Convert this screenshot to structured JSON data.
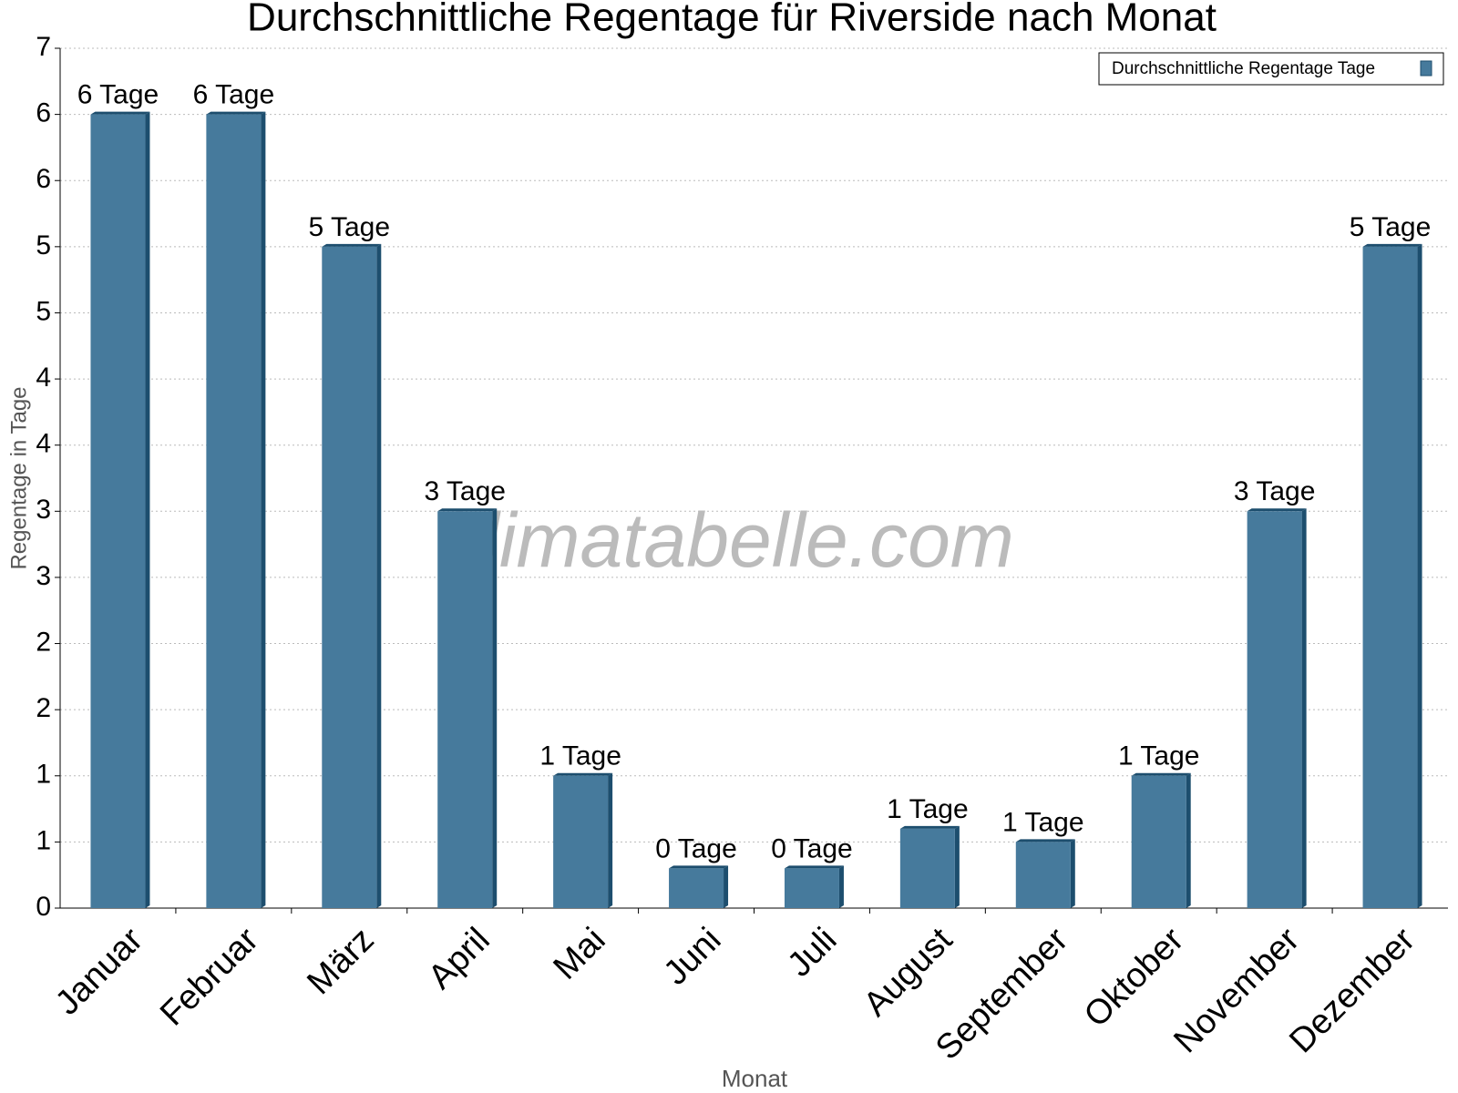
{
  "chart_data": {
    "type": "bar",
    "title": "Durchschnittliche Regentage für Riverside nach Monat",
    "x_label": "Monat",
    "y_label": "Regentage in Tage",
    "watermark": "klimatabelle.com",
    "categories": [
      "Januar",
      "Februar",
      "März",
      "April",
      "Mai",
      "Juni",
      "Juli",
      "August",
      "September",
      "Oktober",
      "November",
      "Dezember"
    ],
    "series": [
      {
        "name": "Durchschnittliche Regentage Tage",
        "color": "#467a9c",
        "values": [
          6,
          6,
          5,
          3,
          1,
          0.3,
          0.3,
          0.6,
          0.5,
          1,
          3,
          5
        ],
        "value_labels": [
          "6 Tage",
          "6 Tage",
          "5 Tage",
          "3 Tage",
          "1 Tage",
          "0 Tage",
          "0 Tage",
          "1 Tage",
          "1 Tage",
          "1 Tage",
          "3 Tage",
          "5 Tage"
        ]
      }
    ],
    "ylim": [
      0,
      6.5
    ],
    "yticks": [
      0,
      {
        "value": 0.5,
        "label": "1"
      },
      1,
      {
        "value": 1.5,
        "label": "2"
      },
      2,
      {
        "value": 2.5,
        "label": "3"
      },
      3,
      {
        "value": 3.5,
        "label": "4"
      },
      4,
      {
        "value": 4.5,
        "label": "5"
      },
      5,
      {
        "value": 5.5,
        "label": "6"
      },
      6,
      {
        "value": 6.5,
        "label": "7"
      }
    ],
    "grid": true,
    "legend": "top-right"
  }
}
